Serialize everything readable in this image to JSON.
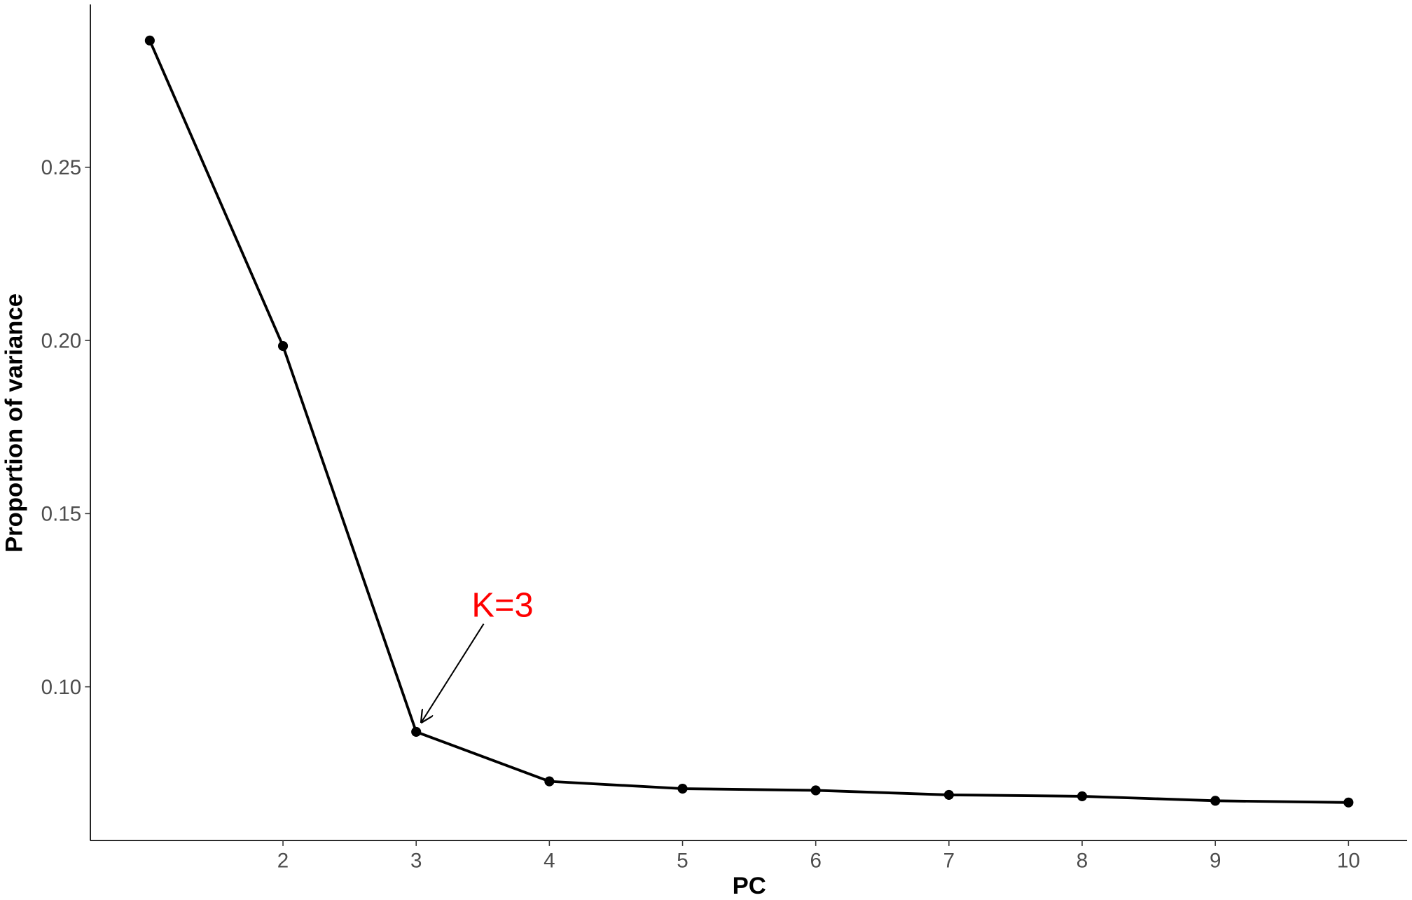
{
  "chart_data": {
    "type": "line",
    "x_label": "PC",
    "y_label": "Proportion of variance",
    "x": [
      1,
      2,
      3,
      4,
      5,
      6,
      7,
      8,
      9,
      10
    ],
    "series": [
      {
        "color": "#000000",
        "values": [
          0.2866,
          0.1984,
          0.087,
          0.0727,
          0.0706,
          0.0701,
          0.0688,
          0.0684,
          0.0671,
          0.0666
        ]
      }
    ],
    "xlim": [
      0.554,
      10.44
    ],
    "ylim": [
      0.0556,
      0.297
    ],
    "xticks": [
      2,
      3,
      4,
      5,
      6,
      7,
      8,
      9,
      10
    ],
    "yticks": [
      {
        "value": 0.1,
        "label": "0.10"
      },
      0.15,
      {
        "value": 0.2,
        "label": "0.20"
      },
      0.25
    ],
    "grid": false,
    "annotations": [
      {
        "text": "K=3",
        "x": 3,
        "color": "#ff0000"
      }
    ]
  }
}
